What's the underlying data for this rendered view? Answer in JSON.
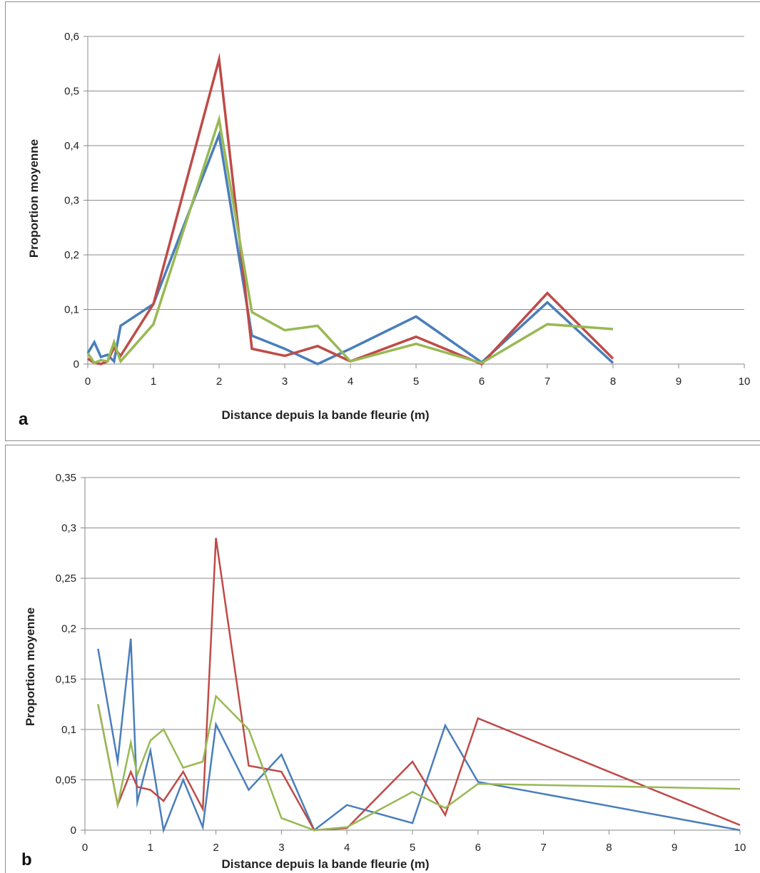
{
  "chart_data": [
    {
      "panel": "a",
      "type": "line",
      "xlabel": "Distance depuis la bande fleurie (m)",
      "ylabel": "Proportion moyenne",
      "xlim": [
        0,
        10
      ],
      "ylim": [
        0,
        0.6
      ],
      "x_ticks": [
        "0",
        "1",
        "2",
        "3",
        "4",
        "5",
        "6",
        "7",
        "8",
        "9",
        "10"
      ],
      "y_ticks": [
        "0",
        "0,1",
        "0,2",
        "0,3",
        "0,4",
        "0,5",
        "0,6"
      ],
      "y_tick_values": [
        0,
        0.1,
        0.2,
        0.3,
        0.4,
        0.5,
        0.6
      ],
      "grid": true,
      "legend": "none",
      "series": [
        {
          "color": "#4a7ebb",
          "width": 3.5,
          "x": [
            0,
            0.1,
            0.2,
            0.3,
            0.4,
            0.5,
            1,
            2,
            2.5,
            3,
            3.5,
            4,
            5,
            6,
            7,
            8
          ],
          "values": [
            0.02,
            0.04,
            0.013,
            0.017,
            0.005,
            0.07,
            0.11,
            0.42,
            0.052,
            0.028,
            0.0,
            0.028,
            0.087,
            0.003,
            0.113,
            0.002
          ]
        },
        {
          "color": "#be4b48",
          "width": 3.5,
          "x": [
            0,
            0.1,
            0.2,
            0.3,
            0.4,
            0.5,
            1,
            2,
            2.5,
            3,
            3.5,
            4,
            5,
            6,
            7,
            8
          ],
          "values": [
            0.01,
            0.002,
            0.0,
            0.005,
            0.03,
            0.015,
            0.11,
            0.558,
            0.028,
            0.015,
            0.033,
            0.005,
            0.05,
            0.0,
            0.13,
            0.01
          ]
        },
        {
          "color": "#98b954",
          "width": 3.5,
          "x": [
            0,
            0.1,
            0.2,
            0.3,
            0.4,
            0.5,
            1,
            2,
            2.5,
            3,
            3.5,
            4,
            5,
            6,
            7,
            8
          ],
          "values": [
            0.02,
            0.002,
            0.007,
            0.005,
            0.04,
            0.005,
            0.073,
            0.448,
            0.095,
            0.062,
            0.07,
            0.005,
            0.037,
            0.002,
            0.073,
            0.064
          ]
        }
      ]
    },
    {
      "panel": "b",
      "type": "line",
      "xlabel": "Distance depuis la bande fleurie (m)",
      "ylabel": "Proportion moyenne",
      "xlim": [
        0,
        10
      ],
      "ylim": [
        0,
        0.35
      ],
      "x_ticks": [
        "0",
        "1",
        "2",
        "3",
        "4",
        "5",
        "6",
        "7",
        "8",
        "9",
        "10"
      ],
      "y_ticks": [
        "0",
        "0,05",
        "0,1",
        "0,15",
        "0,2",
        "0,25",
        "0,3",
        "0,35"
      ],
      "y_tick_values": [
        0,
        0.05,
        0.1,
        0.15,
        0.2,
        0.25,
        0.3,
        0.35
      ],
      "grid": true,
      "legend": "none",
      "series": [
        {
          "color": "#4a7ebb",
          "width": 2.5,
          "x": [
            0.2,
            0.5,
            0.7,
            0.8,
            1,
            1.2,
            1.5,
            1.8,
            2,
            2.5,
            3,
            3.5,
            4,
            5,
            5.5,
            6,
            10
          ],
          "values": [
            0.18,
            0.068,
            0.19,
            0.028,
            0.079,
            0.0,
            0.05,
            0.003,
            0.105,
            0.04,
            0.075,
            0.0,
            0.025,
            0.007,
            0.104,
            0.048,
            0.0
          ]
        },
        {
          "color": "#be4b48",
          "width": 2.5,
          "x": [
            0.2,
            0.5,
            0.7,
            0.8,
            1,
            1.2,
            1.5,
            1.8,
            2,
            2.5,
            3,
            3.5,
            4,
            5,
            5.5,
            6,
            10
          ],
          "values": [
            0.125,
            0.025,
            0.058,
            0.043,
            0.04,
            0.029,
            0.058,
            0.021,
            0.29,
            0.064,
            0.058,
            0.0,
            0.002,
            0.068,
            0.015,
            0.111,
            0.005
          ]
        },
        {
          "color": "#98b954",
          "width": 2.5,
          "x": [
            0.2,
            0.5,
            0.7,
            0.8,
            1,
            1.2,
            1.5,
            1.8,
            2,
            2.5,
            3,
            3.5,
            4,
            5,
            5.5,
            6,
            10
          ],
          "values": [
            0.125,
            0.025,
            0.087,
            0.055,
            0.089,
            0.1,
            0.062,
            0.068,
            0.133,
            0.1,
            0.012,
            0.0,
            0.003,
            0.038,
            0.022,
            0.046,
            0.041
          ]
        }
      ]
    }
  ],
  "panel_letters": [
    "a",
    "b"
  ]
}
